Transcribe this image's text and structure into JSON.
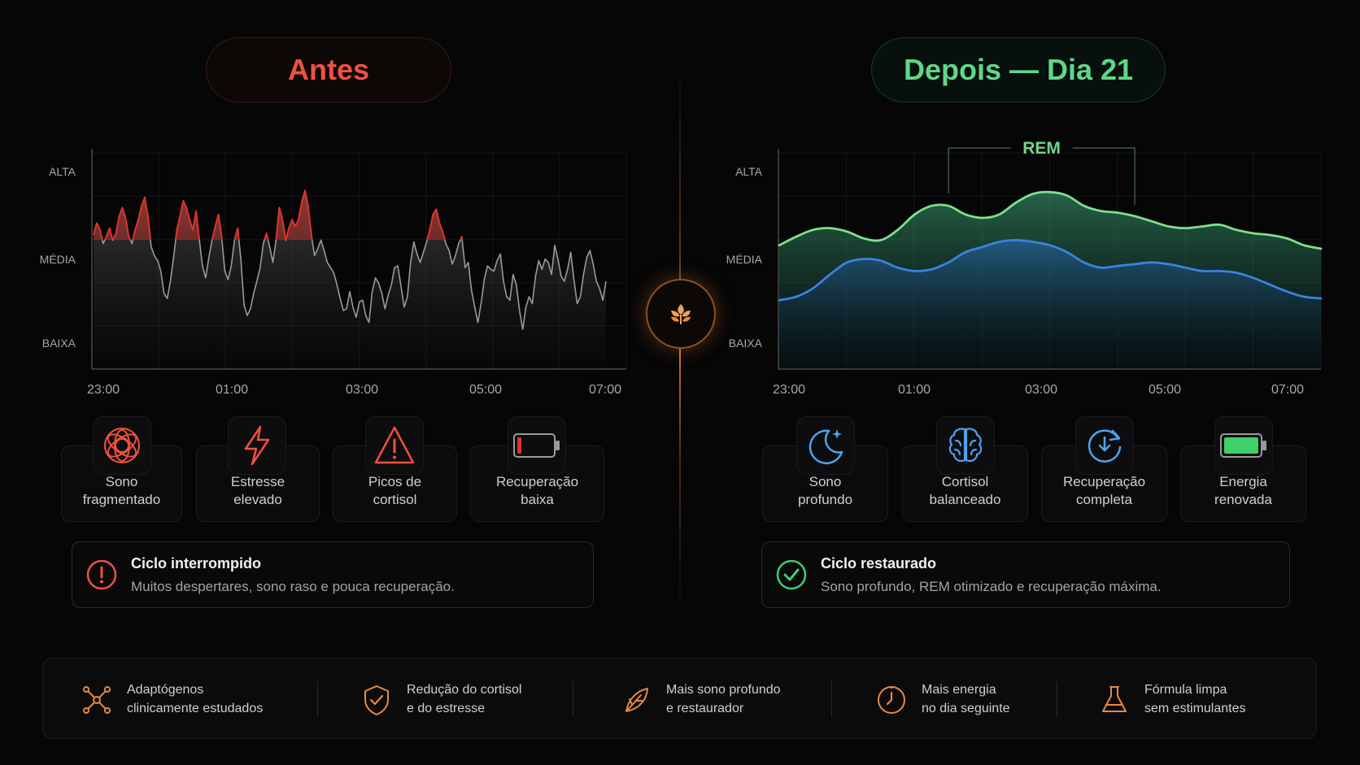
{
  "before": {
    "title": "Antes",
    "chart": {
      "y_labels": [
        "ALTA",
        "MÉDIA",
        "BAIXA"
      ],
      "x_labels": [
        "23:00",
        "01:00",
        "03:00",
        "05:00",
        "07:00"
      ]
    },
    "cards": [
      {
        "label": "Sono\nfragmentado",
        "icon": "tangled-knot-icon"
      },
      {
        "label": "Estresse\nelevado",
        "icon": "lightning-bolt-icon"
      },
      {
        "label": "Picos de\ncortisol",
        "icon": "warning-triangle-icon"
      },
      {
        "label": "Recuperação\nbaixa",
        "icon": "battery-low-icon"
      }
    ],
    "status": {
      "title": "Ciclo interrompido",
      "desc": "Muitos despertares, sono raso e pouca recuperação.",
      "icon": "alert-circle-icon"
    },
    "accent": "#f0513f"
  },
  "after": {
    "title": "Depois — Dia 21",
    "chart": {
      "y_labels": [
        "ALTA",
        "MÉDIA",
        "BAIXA"
      ],
      "x_labels": [
        "23:00",
        "01:00",
        "03:00",
        "05:00",
        "07:00"
      ],
      "annotation": "REM"
    },
    "cards": [
      {
        "label": "Sono\nprofundo",
        "icon": "moon-star-icon"
      },
      {
        "label": "Cortisol\nbalanceado",
        "icon": "brain-icon"
      },
      {
        "label": "Recuperação\ncompleta",
        "icon": "refresh-circle-icon"
      },
      {
        "label": "Energia\nrenovada",
        "icon": "battery-full-icon"
      }
    ],
    "status": {
      "title": "Ciclo restaurado",
      "desc": "Sono profundo, REM otimizado e recuperação máxima.",
      "icon": "check-circle-icon"
    },
    "accent": "#5fd68a"
  },
  "center_icon": "sprout-icon",
  "footer": [
    {
      "text": "Adaptógenos\nclinicamente estudados",
      "icon": "molecule-icon"
    },
    {
      "text": "Redução do cortisol\ne do estresse",
      "icon": "shield-check-icon"
    },
    {
      "text": "Mais sono profundo\ne restaurador",
      "icon": "leaf-icon"
    },
    {
      "text": "Mais energia\nno dia seguinte",
      "icon": "clock-icon"
    },
    {
      "text": "Fórmula limpa\nsem estimulantes",
      "icon": "flask-icon"
    }
  ],
  "chart_data": [
    {
      "type": "line",
      "x_labels": [
        "23:00",
        "01:00",
        "03:00",
        "05:00",
        "07:00"
      ],
      "y_labels": [
        "ALTA",
        "MÉDIA",
        "BAIXA"
      ],
      "x_range": [
        "23:00",
        "07:00"
      ],
      "ylim": [
        0,
        1
      ],
      "series": [
        {
          "color": "#9a9a9a",
          "highlight_color": "#e0322a",
          "x": [
            0,
            0.05,
            0.1,
            0.15,
            0.2,
            0.25,
            0.3,
            0.35,
            0.4,
            0.45,
            0.5,
            0.55,
            0.6,
            0.65,
            0.7,
            0.75,
            0.8,
            0.85,
            0.9,
            0.95,
            1,
            1.05,
            1.1,
            1.15,
            1.2,
            1.25,
            1.3,
            1.35,
            1.4,
            1.45,
            1.5,
            1.55,
            1.6,
            1.65,
            1.7,
            1.75,
            1.8,
            1.85,
            1.9,
            1.95,
            2,
            2.05,
            2.1,
            2.15,
            2.2,
            2.25,
            2.3,
            2.35,
            2.4,
            2.45,
            2.5,
            2.55,
            2.6,
            2.65,
            2.7,
            2.75,
            2.8,
            2.85,
            2.9,
            2.95,
            3,
            3.05,
            3.1,
            3.15,
            3.2,
            3.25,
            3.3,
            3.35,
            3.4,
            3.45,
            3.5,
            3.55,
            3.6,
            3.65,
            3.7,
            3.75,
            3.8,
            3.85,
            3.9,
            3.95,
            4,
            4.05,
            4.1,
            4.15,
            4.2,
            4.25,
            4.3,
            4.35,
            4.4,
            4.45,
            4.5,
            4.55,
            4.6,
            4.65,
            4.7,
            4.75,
            4.8,
            4.85,
            4.9,
            4.95,
            5,
            5.05,
            5.1,
            5.15,
            5.2,
            5.25,
            5.3,
            5.35,
            5.4,
            5.45,
            5.5,
            5.55,
            5.6,
            5.65,
            5.7,
            5.75,
            5.8,
            5.85,
            5.9,
            5.95,
            6,
            6.05,
            6.1,
            6.15,
            6.2,
            6.25,
            6.3,
            6.35,
            6.4,
            6.45,
            6.5,
            6.55,
            6.6,
            6.65,
            6.7,
            6.75,
            6.8,
            6.85,
            6.9,
            6.95,
            7,
            7.05,
            7.1,
            7.15,
            7.2,
            7.25,
            7.3,
            7.35,
            7.4,
            7.45,
            7.5,
            7.55,
            7.6,
            7.65,
            7.7,
            7.75,
            7.8,
            7.85,
            7.9,
            7.95,
            8
          ],
          "values": [
            0.63,
            0.7,
            0.66,
            0.58,
            0.62,
            0.67,
            0.6,
            0.64,
            0.74,
            0.79,
            0.73,
            0.62,
            0.58,
            0.66,
            0.72,
            0.8,
            0.85,
            0.74,
            0.56,
            0.51,
            0.48,
            0.42,
            0.29,
            0.26,
            0.36,
            0.5,
            0.66,
            0.74,
            0.83,
            0.79,
            0.72,
            0.66,
            0.77,
            0.61,
            0.45,
            0.38,
            0.5,
            0.6,
            0.68,
            0.75,
            0.62,
            0.42,
            0.37,
            0.45,
            0.6,
            0.67,
            0.49,
            0.22,
            0.16,
            0.2,
            0.29,
            0.36,
            0.44,
            0.58,
            0.64,
            0.56,
            0.47,
            0.6,
            0.79,
            0.72,
            0.6,
            0.67,
            0.72,
            0.68,
            0.72,
            0.82,
            0.89,
            0.8,
            0.63,
            0.51,
            0.55,
            0.6,
            0.54,
            0.47,
            0.44,
            0.41,
            0.34,
            0.26,
            0.19,
            0.2,
            0.3,
            0.21,
            0.15,
            0.24,
            0.25,
            0.16,
            0.12,
            0.3,
            0.38,
            0.35,
            0.29,
            0.2,
            0.28,
            0.34,
            0.44,
            0.45,
            0.33,
            0.21,
            0.27,
            0.47,
            0.59,
            0.52,
            0.47,
            0.53,
            0.59,
            0.66,
            0.75,
            0.78,
            0.7,
            0.65,
            0.58,
            0.54,
            0.46,
            0.51,
            0.58,
            0.62,
            0.44,
            0.47,
            0.31,
            0.21,
            0.12,
            0.23,
            0.37,
            0.45,
            0.43,
            0.42,
            0.48,
            0.52,
            0.36,
            0.27,
            0.25,
            0.4,
            0.34,
            0.19,
            0.08,
            0.21,
            0.27,
            0.23,
            0.39,
            0.48,
            0.43,
            0.49,
            0.47,
            0.4,
            0.57,
            0.49,
            0.39,
            0.36,
            0.43,
            0.53,
            0.37,
            0.23,
            0.27,
            0.4,
            0.5,
            0.54,
            0.46,
            0.36,
            0.32,
            0.25,
            0.36
          ]
        }
      ]
    },
    {
      "type": "area",
      "x_labels": [
        "23:00",
        "01:00",
        "03:00",
        "05:00",
        "07:00"
      ],
      "y_labels": [
        "ALTA",
        "MÉDIA",
        "BAIXA"
      ],
      "x_range": [
        "23:00",
        "07:00"
      ],
      "ylim": [
        0,
        1
      ],
      "annotation": {
        "text": "REM",
        "x_range": [
          "01:30",
          "04:15"
        ]
      },
      "series": [
        {
          "color": "#7ee08c",
          "x": [
            0,
            0.25,
            0.5,
            0.75,
            1,
            1.25,
            1.5,
            1.75,
            2,
            2.25,
            2.5,
            2.75,
            3,
            3.25,
            3.5,
            3.75,
            4,
            4.25,
            4.5,
            4.75,
            5,
            5.25,
            5.5,
            5.75,
            6,
            6.25,
            6.5,
            6.75,
            7,
            7.25,
            7.5,
            7.75,
            8
          ],
          "values": [
            0.57,
            0.62,
            0.66,
            0.67,
            0.65,
            0.61,
            0.6,
            0.66,
            0.75,
            0.8,
            0.8,
            0.75,
            0.73,
            0.75,
            0.82,
            0.87,
            0.88,
            0.86,
            0.8,
            0.77,
            0.76,
            0.74,
            0.71,
            0.68,
            0.67,
            0.68,
            0.69,
            0.66,
            0.64,
            0.63,
            0.61,
            0.57,
            0.55
          ]
        },
        {
          "color": "#3b82e0",
          "x": [
            0,
            0.25,
            0.5,
            0.75,
            1,
            1.25,
            1.5,
            1.75,
            2,
            2.25,
            2.5,
            2.75,
            3,
            3.25,
            3.5,
            3.75,
            4,
            4.25,
            4.5,
            4.75,
            5,
            5.25,
            5.5,
            5.75,
            6,
            6.25,
            6.5,
            6.75,
            7,
            7.25,
            7.5,
            7.75,
            8
          ],
          "values": [
            0.25,
            0.27,
            0.32,
            0.4,
            0.47,
            0.49,
            0.48,
            0.44,
            0.42,
            0.43,
            0.47,
            0.53,
            0.56,
            0.59,
            0.6,
            0.59,
            0.57,
            0.53,
            0.47,
            0.44,
            0.45,
            0.46,
            0.47,
            0.46,
            0.44,
            0.42,
            0.42,
            0.41,
            0.38,
            0.34,
            0.3,
            0.27,
            0.26
          ]
        }
      ]
    }
  ]
}
